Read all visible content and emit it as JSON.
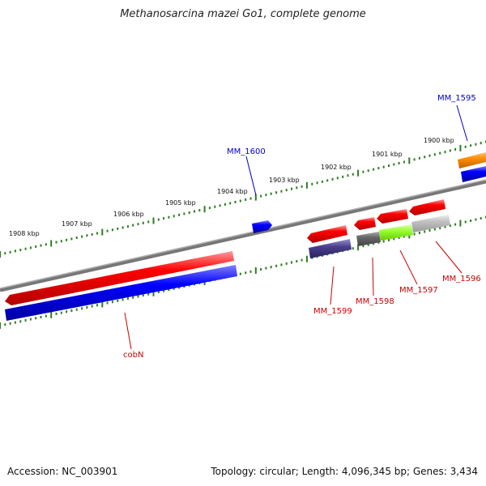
{
  "title": "Methanosarcina mazei Go1, complete genome",
  "footer": {
    "accession": "Accession: NC_003901",
    "summary": "Topology: circular; Length: 4,096,345 bp; Genes: 3,434"
  },
  "kbp_labels": [
    "1900 kbp",
    "1901 kbp",
    "1902 kbp",
    "1903 kbp",
    "1904 kbp",
    "1905 kbp",
    "1906 kbp",
    "1907 kbp",
    "1908 kbp"
  ],
  "gene_labels": {
    "mm1595": "MM_1595",
    "mm1596": "MM_1596",
    "mm1597": "MM_1597",
    "mm1598": "MM_1598",
    "mm1599": "MM_1599",
    "mm1600": "MM_1600",
    "cobn": "cobN"
  },
  "colors": {
    "forward_cds": "#ff0000",
    "blue_feature": "#0000ff",
    "backbone": "#808080",
    "ticks": "#2e7d22",
    "label_forward": "#cc0000",
    "label_reverse": "#0000cc",
    "orange_feature": "#ff8c00",
    "green_feature": "#99ff33",
    "dark_gray_feature": "#666666",
    "light_gray_feature": "#bbbbbb",
    "purple_feature": "#4a3f8c"
  }
}
